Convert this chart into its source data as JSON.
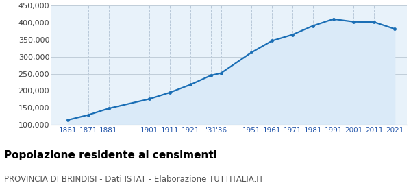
{
  "years": [
    1861,
    1871,
    1881,
    1901,
    1911,
    1921,
    1931,
    1936,
    1951,
    1961,
    1971,
    1981,
    1991,
    2001,
    2011,
    2021
  ],
  "population": [
    114000,
    129000,
    148000,
    176000,
    195000,
    218000,
    245000,
    252000,
    313000,
    347000,
    365000,
    391000,
    411000,
    403000,
    402000,
    382000
  ],
  "line_color": "#1a6eb5",
  "fill_color": "#daeaf8",
  "marker_color": "#1a6eb5",
  "grid_color_h": "#c0cdd8",
  "grid_color_v": "#b8c8d8",
  "background_color": "#e8f2fa",
  "ylim": [
    100000,
    450000
  ],
  "yticks": [
    100000,
    150000,
    200000,
    250000,
    300000,
    350000,
    400000,
    450000
  ],
  "x_ticks": [
    1861,
    1871,
    1881,
    1901,
    1911,
    1921,
    1931,
    1936,
    1951,
    1961,
    1971,
    1981,
    1991,
    2001,
    2011,
    2021
  ],
  "x_labels": [
    "1861",
    "1871",
    "1881",
    "1901",
    "1911",
    "1921",
    "'31",
    "'36",
    "1951",
    "1961",
    "1971",
    "1981",
    "1991",
    "2001",
    "2011",
    "2021"
  ],
  "xlim": [
    1853,
    2027
  ],
  "title": "Popolazione residente ai censimenti",
  "subtitle": "PROVINCIA DI BRINDISI - Dati ISTAT - Elaborazione TUTTITALIA.IT",
  "title_fontsize": 11,
  "subtitle_fontsize": 8.5,
  "tick_fontsize": 7.5,
  "ytick_fontsize": 8
}
